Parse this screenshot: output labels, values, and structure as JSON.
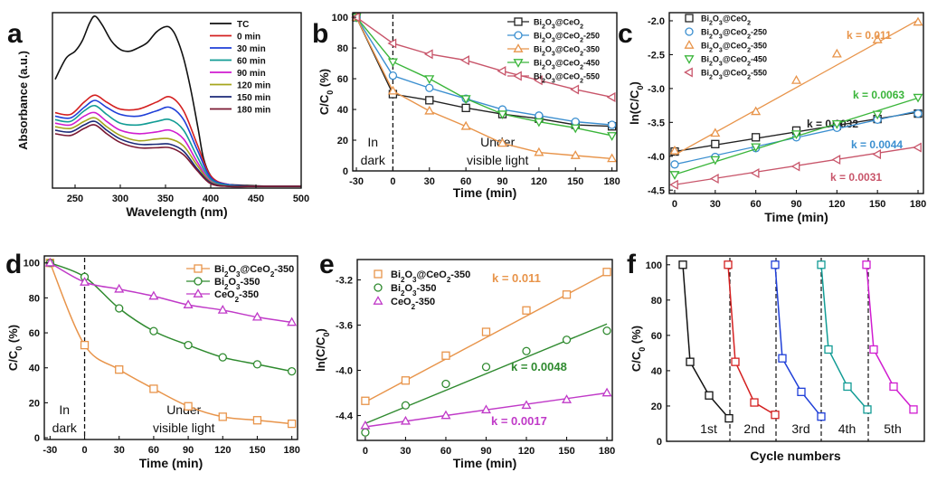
{
  "chart_data": [
    {
      "panel": "a",
      "type": "line",
      "xlabel": "Wavelength (nm)",
      "ylabel": "Absorbance (a.u.)",
      "xlim": [
        225,
        500
      ],
      "xticks": [
        250,
        300,
        350,
        400,
        450,
        500
      ],
      "ylim": [
        0,
        1
      ],
      "legend": [
        "TC",
        "0 min",
        "30 min",
        "60 min",
        "90 min",
        "120 min",
        "150 min",
        "180 min"
      ],
      "colors": [
        "#111111",
        "#d42020",
        "#1f3fd8",
        "#129c95",
        "#d01cd0",
        "#a5a51c",
        "#1b2a78",
        "#7a1832"
      ],
      "series": [
        {
          "name": "TC",
          "x": [
            228,
            240,
            250,
            258,
            266,
            272,
            280,
            290,
            300,
            310,
            320,
            330,
            340,
            350,
            356,
            362,
            370,
            378,
            386,
            392,
            400,
            410,
            420,
            440,
            470,
            500
          ],
          "y": [
            0.62,
            0.74,
            0.78,
            0.84,
            0.94,
            0.98,
            0.93,
            0.84,
            0.79,
            0.78,
            0.8,
            0.83,
            0.89,
            0.92,
            0.91,
            0.86,
            0.74,
            0.56,
            0.34,
            0.17,
            0.07,
            0.03,
            0.02,
            0.015,
            0.01,
            0.01
          ]
        },
        {
          "name": "0 min",
          "x": [
            228,
            245,
            260,
            272,
            285,
            300,
            320,
            340,
            355,
            370,
            385,
            400,
            420,
            450,
            500
          ],
          "y": [
            0.43,
            0.42,
            0.49,
            0.53,
            0.49,
            0.45,
            0.45,
            0.49,
            0.52,
            0.44,
            0.25,
            0.07,
            0.02,
            0.01,
            0.01
          ]
        },
        {
          "name": "30 min",
          "x": [
            228,
            245,
            260,
            272,
            285,
            300,
            320,
            340,
            355,
            370,
            385,
            400,
            420,
            450,
            500
          ],
          "y": [
            0.41,
            0.4,
            0.46,
            0.5,
            0.46,
            0.42,
            0.41,
            0.44,
            0.46,
            0.39,
            0.22,
            0.06,
            0.02,
            0.01,
            0.01
          ]
        },
        {
          "name": "60 min",
          "x": [
            228,
            245,
            260,
            272,
            285,
            300,
            320,
            340,
            355,
            370,
            385,
            400,
            420,
            450,
            500
          ],
          "y": [
            0.39,
            0.38,
            0.44,
            0.47,
            0.42,
            0.37,
            0.36,
            0.38,
            0.39,
            0.33,
            0.18,
            0.05,
            0.015,
            0.01,
            0.01
          ]
        },
        {
          "name": "90 min",
          "x": [
            228,
            245,
            260,
            272,
            285,
            300,
            320,
            340,
            355,
            370,
            385,
            400,
            420,
            450,
            500
          ],
          "y": [
            0.37,
            0.36,
            0.41,
            0.43,
            0.38,
            0.33,
            0.31,
            0.32,
            0.33,
            0.28,
            0.15,
            0.04,
            0.01,
            0.01,
            0.01
          ]
        },
        {
          "name": "120 min",
          "x": [
            228,
            245,
            260,
            272,
            285,
            300,
            320,
            340,
            355,
            370,
            385,
            400,
            420,
            450,
            500
          ],
          "y": [
            0.35,
            0.34,
            0.38,
            0.4,
            0.35,
            0.3,
            0.27,
            0.28,
            0.28,
            0.24,
            0.13,
            0.035,
            0.01,
            0.01,
            0.01
          ]
        },
        {
          "name": "150 min",
          "x": [
            228,
            245,
            260,
            272,
            285,
            300,
            320,
            340,
            355,
            370,
            385,
            400,
            420,
            450,
            500
          ],
          "y": [
            0.33,
            0.32,
            0.36,
            0.38,
            0.33,
            0.28,
            0.25,
            0.25,
            0.25,
            0.21,
            0.11,
            0.03,
            0.01,
            0.01,
            0.01
          ]
        },
        {
          "name": "180 min",
          "x": [
            228,
            245,
            260,
            272,
            285,
            300,
            320,
            340,
            355,
            370,
            385,
            400,
            420,
            450,
            500
          ],
          "y": [
            0.31,
            0.3,
            0.34,
            0.36,
            0.31,
            0.26,
            0.23,
            0.23,
            0.23,
            0.19,
            0.1,
            0.025,
            0.01,
            0.01,
            0.01
          ]
        }
      ]
    },
    {
      "panel": "b",
      "type": "line",
      "xlabel": "Time (min)",
      "ylabel": "C/C0 (%)",
      "xlim": [
        -30,
        180
      ],
      "xticks": [
        -30,
        0,
        30,
        60,
        90,
        120,
        150,
        180
      ],
      "ylim": [
        0,
        100
      ],
      "yticks": [
        0,
        20,
        40,
        60,
        80,
        100
      ],
      "annotations": [
        "In",
        "dark",
        "Under",
        "visible light"
      ],
      "x": [
        -30,
        0,
        30,
        60,
        90,
        120,
        150,
        180
      ],
      "series": [
        {
          "name": "Bi2O3@CeO2",
          "marker": "square",
          "color": "#222222",
          "values": [
            100,
            50,
            46,
            41,
            37,
            34,
            30,
            29
          ]
        },
        {
          "name": "Bi2O3@CeO2-250",
          "marker": "circle",
          "color": "#3b8fd0",
          "values": [
            100,
            62,
            54,
            47,
            40,
            36,
            32,
            30
          ]
        },
        {
          "name": "Bi2O3@CeO2-350",
          "marker": "triangle-up",
          "color": "#e8944a",
          "values": [
            100,
            52,
            39,
            29,
            18,
            12,
            10,
            8
          ]
        },
        {
          "name": "Bi2O3@CeO2-450",
          "marker": "triangle-down",
          "color": "#3ab53a",
          "values": [
            100,
            71,
            60,
            47,
            37,
            32,
            28,
            23
          ]
        },
        {
          "name": "Bi2O3@CeO2-550",
          "marker": "triangle-left",
          "color": "#c8556a",
          "values": [
            100,
            83,
            76,
            72,
            65,
            59,
            53,
            48
          ]
        }
      ]
    },
    {
      "panel": "c",
      "type": "scatter",
      "xlabel": "Time (min)",
      "ylabel": "ln(C/C0)",
      "xlim": [
        0,
        180
      ],
      "xticks": [
        0,
        30,
        60,
        90,
        120,
        150,
        180
      ],
      "ylim": [
        -4.5,
        -1.9
      ],
      "yticks": [
        -4.5,
        -4.0,
        -3.5,
        -3.0,
        -2.5,
        -2.0
      ],
      "x": [
        0,
        30,
        60,
        90,
        120,
        150,
        180
      ],
      "series": [
        {
          "name": "Bi2O3@CeO2",
          "marker": "square",
          "color": "#222222",
          "values": [
            -3.93,
            -3.82,
            -3.72,
            -3.62,
            -3.55,
            -3.45,
            -3.37
          ],
          "fit": [
            -3.93,
            -3.35
          ],
          "k": "k = 0.0032"
        },
        {
          "name": "Bi2O3@CeO2-250",
          "marker": "circle",
          "color": "#3b8fd0",
          "values": [
            -4.12,
            -4.01,
            -3.88,
            -3.72,
            -3.58,
            -3.46,
            -3.37
          ],
          "fit": [
            -4.12,
            -3.33
          ],
          "k": "k = 0.0044"
        },
        {
          "name": "Bi2O3@CeO2-350",
          "marker": "triangle-up",
          "color": "#e8944a",
          "values": [
            -3.92,
            -3.66,
            -3.34,
            -2.88,
            -2.49,
            -2.28,
            -2.02
          ],
          "fit": [
            -3.98,
            -1.99
          ],
          "k": "k = 0.011"
        },
        {
          "name": "Bi2O3@CeO2-450",
          "marker": "triangle-down",
          "color": "#3ab53a",
          "values": [
            -4.27,
            -4.05,
            -3.86,
            -3.67,
            -3.52,
            -3.38,
            -3.13
          ],
          "fit": [
            -4.27,
            -3.14
          ],
          "k": "k = 0.0063"
        },
        {
          "name": "Bi2O3@CeO2-550",
          "marker": "triangle-left",
          "color": "#c8556a",
          "values": [
            -4.42,
            -4.33,
            -4.25,
            -4.15,
            -4.05,
            -3.97,
            -3.87
          ],
          "fit": [
            -4.42,
            -3.86
          ],
          "k": "k = 0.0031"
        }
      ]
    },
    {
      "panel": "d",
      "type": "line",
      "xlabel": "Time (min)",
      "ylabel": "C/C0 (%)",
      "xlim": [
        -30,
        180
      ],
      "xticks": [
        -30,
        0,
        30,
        60,
        90,
        120,
        150,
        180
      ],
      "ylim": [
        0,
        100
      ],
      "yticks": [
        0,
        20,
        40,
        60,
        80,
        100
      ],
      "annotations": [
        "In",
        "dark",
        "Under",
        "visible light"
      ],
      "x": [
        -30,
        0,
        30,
        60,
        90,
        120,
        150,
        180
      ],
      "series": [
        {
          "name": "Bi2O3@CeO2-350",
          "marker": "square",
          "color": "#e8944a",
          "values": [
            100,
            53,
            39,
            28,
            18,
            12,
            10,
            8
          ]
        },
        {
          "name": "Bi2O3-350",
          "marker": "circle",
          "color": "#2f8a2f",
          "values": [
            100,
            92,
            74,
            61,
            53,
            46,
            42,
            38
          ]
        },
        {
          "name": "CeO2-350",
          "marker": "triangle-up",
          "color": "#c03ac8",
          "values": [
            100,
            89,
            85,
            81,
            76,
            73,
            69,
            66
          ]
        }
      ]
    },
    {
      "panel": "e",
      "type": "scatter",
      "xlabel": "Time (min)",
      "ylabel": "ln(C/C0)",
      "xlim": [
        0,
        180
      ],
      "xticks": [
        0,
        30,
        60,
        90,
        120,
        150,
        180
      ],
      "ylim": [
        -4.6,
        -3.05
      ],
      "yticks": [
        -4.4,
        -4.0,
        -3.6,
        -3.2
      ],
      "x": [
        0,
        30,
        60,
        90,
        120,
        150,
        180
      ],
      "series": [
        {
          "name": "Bi2O3@CeO2-350",
          "marker": "square",
          "color": "#e8944a",
          "values": [
            -4.27,
            -4.09,
            -3.87,
            -3.66,
            -3.47,
            -3.33,
            -3.13
          ],
          "fit": [
            -4.28,
            -3.14
          ],
          "k": "k = 0.011"
        },
        {
          "name": "Bi2O3-350",
          "marker": "circle",
          "color": "#2f8a2f",
          "values": [
            -4.55,
            -4.31,
            -4.12,
            -3.97,
            -3.83,
            -3.73,
            -3.65
          ],
          "fit": [
            -4.47,
            -3.59
          ],
          "k": "k = 0.0048"
        },
        {
          "name": "CeO2-350",
          "marker": "triangle-up",
          "color": "#c03ac8",
          "values": [
            -4.49,
            -4.45,
            -4.4,
            -4.35,
            -4.31,
            -4.26,
            -4.2
          ],
          "fit": [
            -4.5,
            -4.2
          ],
          "k": "k = 0.0017"
        }
      ]
    },
    {
      "panel": "f",
      "type": "line",
      "xlabel": "Cycle numbers",
      "ylabel": "C/C0 (%)",
      "ylim": [
        0,
        100
      ],
      "yticks": [
        0,
        20,
        40,
        60,
        80,
        100
      ],
      "marker": "square",
      "cycles": [
        {
          "label": "1st",
          "color": "#111111",
          "values": [
            100,
            45,
            26,
            13
          ]
        },
        {
          "label": "2nd",
          "color": "#d42020",
          "values": [
            100,
            45,
            22,
            15
          ]
        },
        {
          "label": "3rd",
          "color": "#1f3fd8",
          "values": [
            100,
            47,
            28,
            14
          ]
        },
        {
          "label": "4th",
          "color": "#129c95",
          "values": [
            100,
            52,
            31,
            18
          ]
        },
        {
          "label": "5th",
          "color": "#d01cd0",
          "values": [
            100,
            52,
            31,
            18
          ]
        }
      ]
    }
  ]
}
